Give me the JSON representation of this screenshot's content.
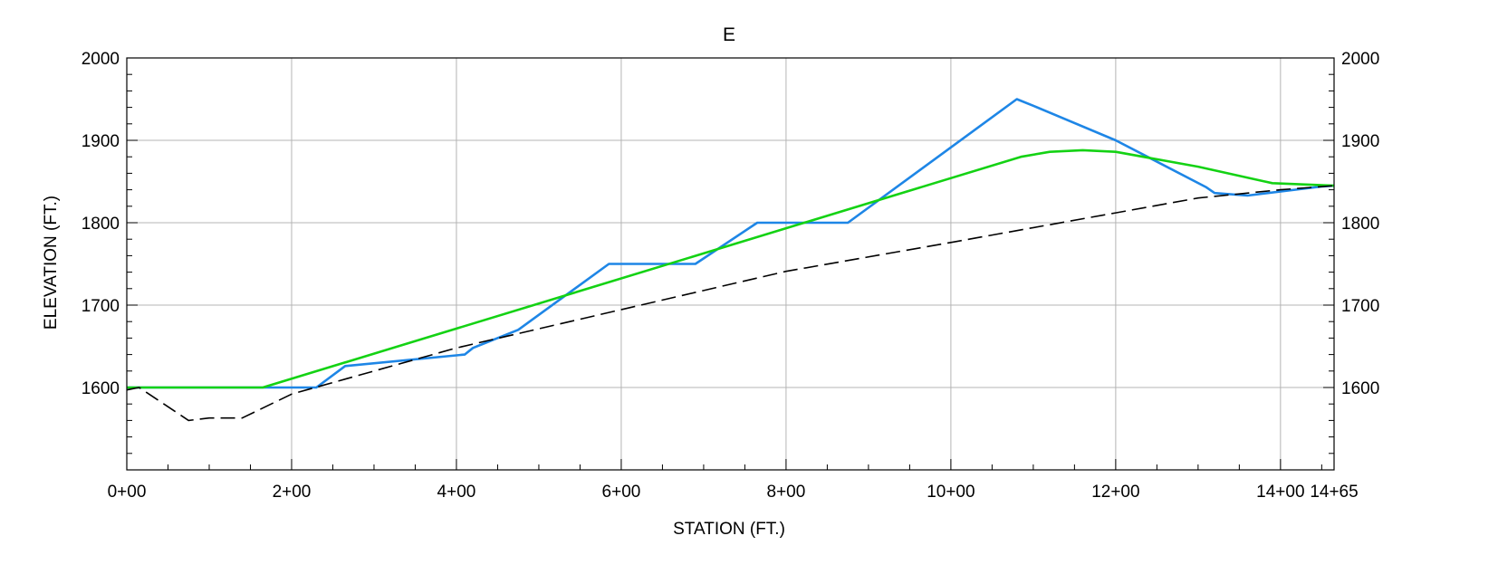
{
  "chart_data": {
    "type": "line",
    "title": "E",
    "xlabel": "STATION (FT.)",
    "ylabel": "ELEVATION (FT.)",
    "xlim": [
      0,
      1465
    ],
    "ylim": [
      1500,
      2000
    ],
    "grid": true,
    "x_ticks": [
      {
        "value": 0,
        "label": "0+00"
      },
      {
        "value": 200,
        "label": "2+00"
      },
      {
        "value": 400,
        "label": "4+00"
      },
      {
        "value": 600,
        "label": "6+00"
      },
      {
        "value": 800,
        "label": "8+00"
      },
      {
        "value": 1000,
        "label": "10+00"
      },
      {
        "value": 1200,
        "label": "12+00"
      },
      {
        "value": 1400,
        "label": "14+00"
      },
      {
        "value": 1465,
        "label": "14+65"
      }
    ],
    "y_ticks": [
      {
        "value": 1600,
        "label": "1600"
      },
      {
        "value": 1700,
        "label": "1700"
      },
      {
        "value": 1800,
        "label": "1800"
      },
      {
        "value": 1900,
        "label": "1900"
      },
      {
        "value": 2000,
        "label": "2000"
      }
    ],
    "series": [
      {
        "color": "#1e86e6",
        "style": "solid",
        "points": [
          [
            0,
            1600
          ],
          [
            230,
            1600
          ],
          [
            265,
            1626
          ],
          [
            410,
            1640
          ],
          [
            420,
            1648
          ],
          [
            475,
            1670
          ],
          [
            585,
            1750
          ],
          [
            690,
            1750
          ],
          [
            765,
            1800
          ],
          [
            875,
            1800
          ],
          [
            1080,
            1950
          ],
          [
            1100,
            1942
          ],
          [
            1200,
            1900
          ],
          [
            1310,
            1843
          ],
          [
            1320,
            1836
          ],
          [
            1360,
            1833
          ],
          [
            1450,
            1844
          ],
          [
            1465,
            1845
          ]
        ]
      },
      {
        "color": "#14d214",
        "style": "solid",
        "points": [
          [
            0,
            1600
          ],
          [
            165,
            1600
          ],
          [
            1085,
            1880
          ],
          [
            1120,
            1886
          ],
          [
            1160,
            1888
          ],
          [
            1200,
            1886
          ],
          [
            1300,
            1868
          ],
          [
            1390,
            1848
          ],
          [
            1465,
            1845
          ]
        ]
      },
      {
        "color": "#000000",
        "style": "dashed",
        "points": [
          [
            0,
            1597
          ],
          [
            15,
            1600
          ],
          [
            75,
            1560
          ],
          [
            100,
            1563
          ],
          [
            140,
            1563
          ],
          [
            200,
            1592
          ],
          [
            400,
            1648
          ],
          [
            800,
            1741
          ],
          [
            1000,
            1776
          ],
          [
            1200,
            1812
          ],
          [
            1300,
            1830
          ],
          [
            1400,
            1840
          ],
          [
            1465,
            1845
          ]
        ]
      }
    ]
  }
}
